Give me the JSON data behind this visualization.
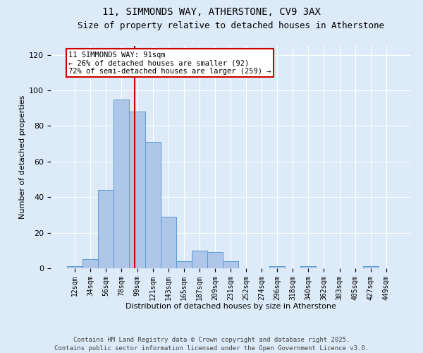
{
  "title1": "11, SIMMONDS WAY, ATHERSTONE, CV9 3AX",
  "title2": "Size of property relative to detached houses in Atherstone",
  "xlabel": "Distribution of detached houses by size in Atherstone",
  "ylabel": "Number of detached properties",
  "bin_labels": [
    "12sqm",
    "34sqm",
    "56sqm",
    "78sqm",
    "99sqm",
    "121sqm",
    "143sqm",
    "165sqm",
    "187sqm",
    "209sqm",
    "231sqm",
    "252sqm",
    "274sqm",
    "296sqm",
    "318sqm",
    "340sqm",
    "362sqm",
    "383sqm",
    "405sqm",
    "427sqm",
    "449sqm"
  ],
  "bar_values": [
    1,
    5,
    44,
    95,
    88,
    71,
    29,
    4,
    10,
    9,
    4,
    0,
    0,
    1,
    0,
    1,
    0,
    0,
    0,
    1,
    0
  ],
  "bar_color": "#aec6e8",
  "bar_edge_color": "#5b9bd5",
  "background_color": "#ddeaf8",
  "grid_color": "#ffffff",
  "vline_color": "#cc0000",
  "annotation_text": "11 SIMMONDS WAY: 91sqm\n← 26% of detached houses are smaller (92)\n72% of semi-detached houses are larger (259) →",
  "annotation_box_color": "#ffffff",
  "annotation_box_edge": "#cc0000",
  "ylim": [
    0,
    125
  ],
  "yticks": [
    0,
    20,
    40,
    60,
    80,
    100,
    120
  ],
  "footnote": "Contains HM Land Registry data © Crown copyright and database right 2025.\nContains public sector information licensed under the Open Government Licence v3.0.",
  "title1_fontsize": 10,
  "title2_fontsize": 9,
  "axis_label_fontsize": 8,
  "tick_fontsize": 7,
  "annotation_fontsize": 7.5,
  "footnote_fontsize": 6.5,
  "vline_bin_index": 3.82
}
